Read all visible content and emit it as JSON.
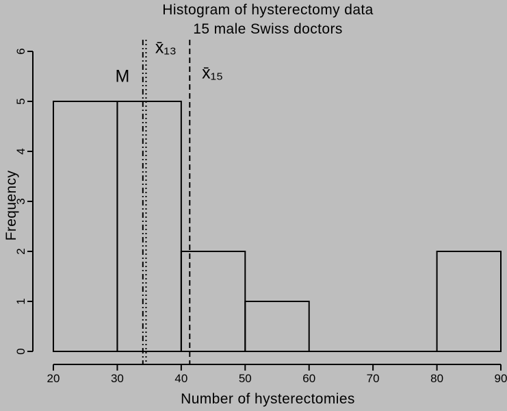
{
  "colors": {
    "background": "#bebebe",
    "foreground": "#000000"
  },
  "chart_data": {
    "type": "bar",
    "subtype": "histogram",
    "title": "Histogram of hysterectomy data",
    "subtitle": "15 male Swiss doctors",
    "xlabel": "Number of hysterectomies",
    "ylabel": "Frequency",
    "xlim": [
      20,
      90
    ],
    "ylim": [
      0,
      6
    ],
    "x_ticks": [
      20,
      30,
      40,
      50,
      60,
      70,
      80,
      90
    ],
    "y_ticks": [
      0,
      1,
      2,
      3,
      4,
      5,
      6
    ],
    "grid": false,
    "bins": {
      "breaks": [
        20,
        30,
        40,
        50,
        60,
        70,
        80,
        90
      ],
      "counts": [
        5,
        5,
        2,
        1,
        0,
        0,
        2
      ]
    },
    "annotations": [
      {
        "name": "median",
        "label": "M",
        "value": 34,
        "line_style": "dotdash",
        "label_x": 30.8,
        "label_y": 5.49
      },
      {
        "name": "mean-13",
        "label": "x̄₁₃",
        "value": 34.5,
        "line_style": "dotted",
        "label_x": 37.6,
        "label_y": 6.07
      },
      {
        "name": "mean-15",
        "label": "x̄₁₅",
        "value": 41.33,
        "line_style": "dashed",
        "label_x": 44.9,
        "label_y": 5.56
      }
    ]
  }
}
